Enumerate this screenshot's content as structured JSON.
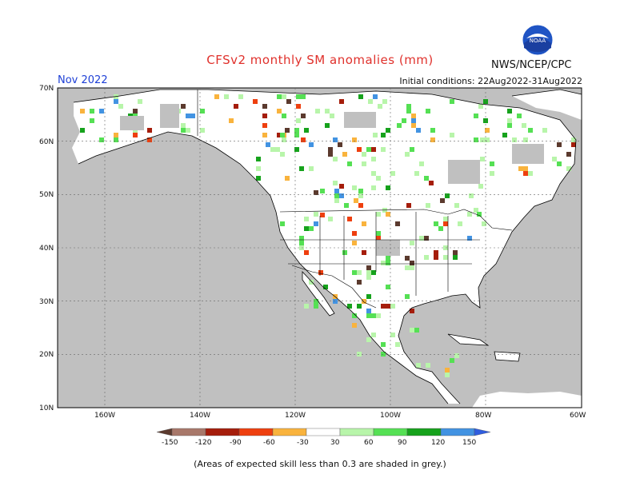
{
  "header": {
    "title": "CFSv2 monthly SM anomalies (mm)",
    "month": "Nov 2022",
    "agency": "NWS/NCEP/CPC",
    "initial_conditions": "Initial conditions: 22Aug2022-31Aug2022",
    "logo_text": "NOAA"
  },
  "map": {
    "lat_labels": [
      "70N",
      "60N",
      "50N",
      "40N",
      "30N",
      "20N",
      "10N"
    ],
    "lon_labels": [
      "160W",
      "140W",
      "120W",
      "100W",
      "80W",
      "60W"
    ],
    "background_color": "#c0c0c0",
    "land_no_signal_color": "#ffffff",
    "coast_color": "#000000"
  },
  "colorbar": {
    "labels": [
      "-150",
      "-120",
      "-90",
      "-60",
      "-30",
      "30",
      "60",
      "90",
      "120",
      "150"
    ],
    "colors": [
      "#5b3a2e",
      "#a8786a",
      "#a51d0b",
      "#ee3f0f",
      "#f9b33d",
      "#ffffff",
      "#b8f5aa",
      "#55e054",
      "#16a21c",
      "#4293e2",
      "#2f5ddf"
    ]
  },
  "footnote": "(Areas of expected skill less than 0.3 are shaded in grey.)"
}
